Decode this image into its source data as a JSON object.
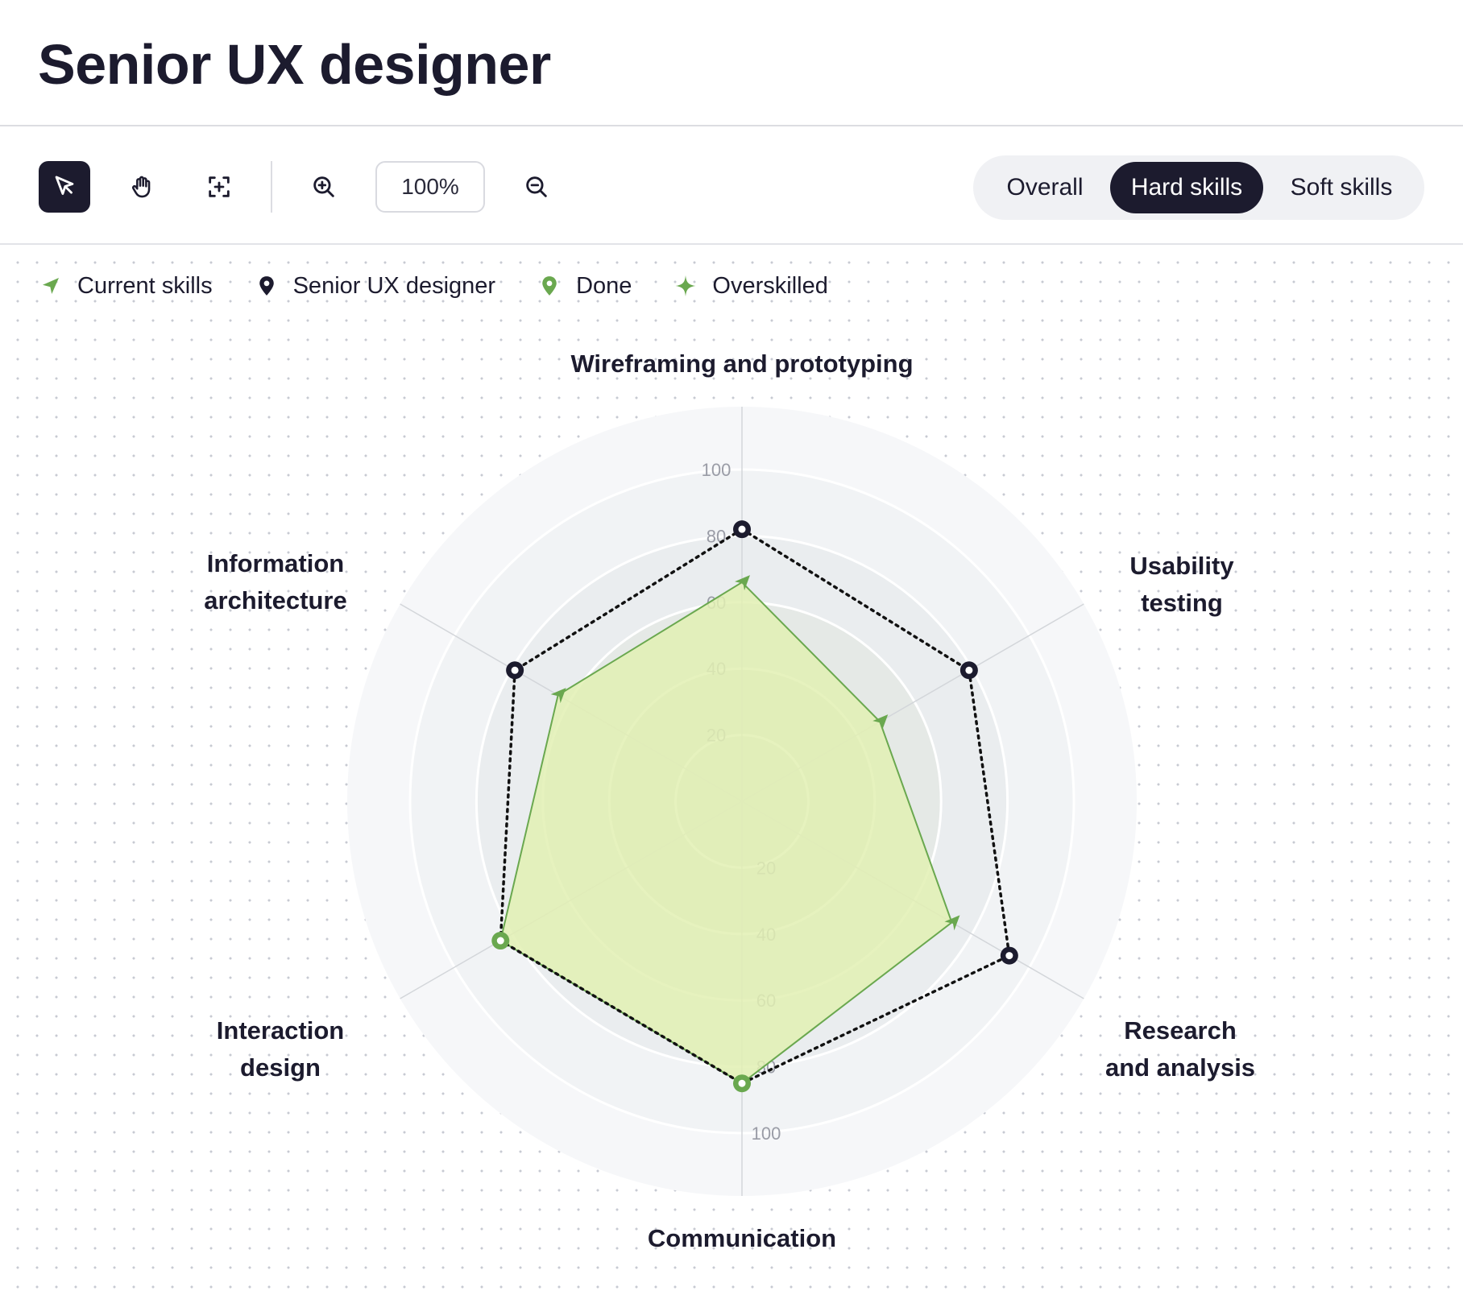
{
  "header": {
    "title": "Senior UX designer"
  },
  "toolbar": {
    "tools": [
      {
        "name": "select-tool-button",
        "icon": "cursor-icon",
        "active": true
      },
      {
        "name": "pan-tool-button",
        "icon": "hand-icon",
        "active": false
      },
      {
        "name": "fit-view-button",
        "icon": "focus-icon",
        "active": false
      }
    ],
    "zoom_in_icon": "zoom-in-icon",
    "zoom_value": "100%",
    "zoom_out_icon": "zoom-out-icon",
    "segments": [
      {
        "label": "Overall",
        "active": false
      },
      {
        "label": "Hard skills",
        "active": true
      },
      {
        "label": "Soft skills",
        "active": false
      }
    ]
  },
  "legend": [
    {
      "label": "Current skills",
      "icon": "arrow-icon",
      "color": "#6aa84f"
    },
    {
      "label": "Senior UX designer",
      "icon": "pin-icon",
      "color": "#1c1b2e"
    },
    {
      "label": "Done",
      "icon": "pin-icon",
      "color": "#6aa84f"
    },
    {
      "label": "Overskilled",
      "icon": "sparkle-icon",
      "color": "#6aa84f"
    }
  ],
  "colors": {
    "accent_dark": "#1c1b2e",
    "current_fill": "#e2f0b3",
    "current_stroke": "#6aa84f",
    "target_stroke": "#111111"
  },
  "chart_data": {
    "type": "radar",
    "axes": [
      "Wireframing and prototyping",
      "Usability testing",
      "Research and analysis",
      "Communication",
      "Interaction design",
      "Information architecture"
    ],
    "axis_label_lines": [
      [
        "Wireframing and prototyping"
      ],
      [
        "Usability",
        "testing"
      ],
      [
        "Research",
        "and analysis"
      ],
      [
        "Communication"
      ],
      [
        "Interaction",
        "design"
      ],
      [
        "Information",
        "architecture"
      ]
    ],
    "rlim": [
      0,
      100
    ],
    "ticks": [
      20,
      40,
      60,
      80,
      100
    ],
    "tick_labels": [
      "20",
      "40",
      "60",
      "80",
      "100"
    ],
    "series": [
      {
        "name": "Current skills",
        "values": [
          66,
          48,
          73,
          85,
          84,
          64
        ]
      },
      {
        "name": "Senior UX designer",
        "values": [
          82,
          79,
          93,
          85,
          84,
          79
        ]
      }
    ],
    "point_markers": {
      "Current skills": [
        "arrow",
        "arrow",
        "arrow",
        "done",
        "done",
        "arrow"
      ]
    }
  }
}
